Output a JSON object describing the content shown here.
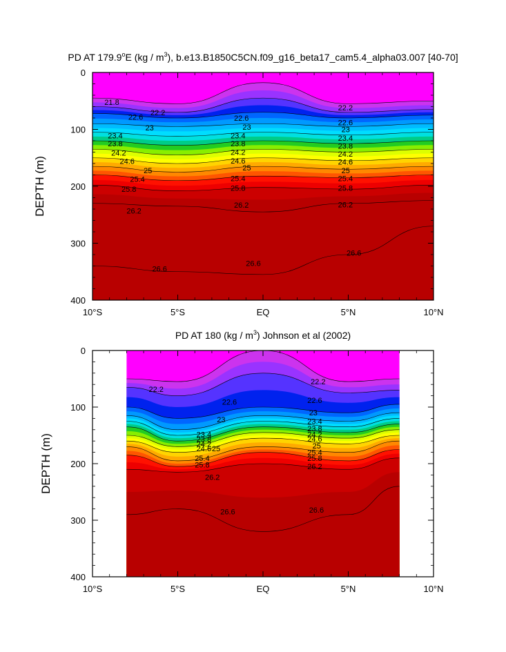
{
  "panels": [
    {
      "title_pre": "PD AT 179.9",
      "title_mid": "E (kg / m",
      "title_post": "), b.e13.B1850C5CN.f09_g16_beta17_cam5.4_alpha03.007 [40-70]",
      "ylabel": "DEPTH (m)",
      "data_xlim": [
        -10,
        10
      ]
    },
    {
      "title_pre": "PD AT 180 (kg / m",
      "title_mid": "",
      "title_post": ") Johnson et al (2002)",
      "ylabel": "DEPTH (m)",
      "data_xlim": [
        -8,
        8
      ]
    }
  ],
  "x_ticks": [
    "10°S",
    "5°S",
    "EQ",
    "5°N",
    "10°N"
  ],
  "y_ticks": [
    "0",
    "100",
    "200",
    "300",
    "400"
  ],
  "chart_data": [
    {
      "type": "heatmap",
      "title": "PD AT 179.9°E (kg / m³), b.e13.B1850C5CN.f09_g16_beta17_cam5.4_alpha03.007 [40-70]",
      "xlabel": "",
      "ylabel": "DEPTH (m)",
      "xlim": [
        -10,
        10
      ],
      "ylim": [
        400,
        0
      ],
      "x": [
        -10,
        -5,
        0,
        5,
        10
      ],
      "contour_levels": [
        21.8,
        22.2,
        22.6,
        23,
        23.4,
        23.8,
        24.2,
        24.6,
        25,
        25.4,
        25.8,
        26.2,
        26.6
      ],
      "contour_labels": [
        "21.8",
        "22.2",
        "22.6",
        "23",
        "23.4",
        "23.8",
        "24.2",
        "24.6",
        "25",
        "25.4",
        "25.8",
        "26.2",
        "26.6"
      ],
      "contour_depths": [
        {
          "level": 21.8,
          "depths": [
            45,
            55,
            18,
            55,
            50
          ]
        },
        {
          "level": 22.2,
          "depths": [
            60,
            70,
            45,
            70,
            65
          ]
        },
        {
          "level": 22.6,
          "depths": [
            72,
            80,
            70,
            80,
            75
          ]
        },
        {
          "level": 23,
          "depths": [
            90,
            95,
            90,
            95,
            90
          ]
        },
        {
          "level": 23.4,
          "depths": [
            105,
            112,
            105,
            110,
            105
          ]
        },
        {
          "level": 23.8,
          "depths": [
            120,
            128,
            120,
            125,
            120
          ]
        },
        {
          "level": 24.2,
          "depths": [
            135,
            145,
            135,
            140,
            135
          ]
        },
        {
          "level": 24.6,
          "depths": [
            150,
            160,
            150,
            155,
            150
          ]
        },
        {
          "level": 25,
          "depths": [
            165,
            175,
            165,
            170,
            165
          ]
        },
        {
          "level": 25.4,
          "depths": [
            180,
            190,
            182,
            185,
            180
          ]
        },
        {
          "level": 25.8,
          "depths": [
            198,
            208,
            202,
            205,
            198
          ]
        },
        {
          "level": 26.2,
          "depths": [
            230,
            235,
            245,
            230,
            225
          ]
        },
        {
          "level": 26.6,
          "depths": [
            340,
            350,
            355,
            320,
            270
          ]
        }
      ],
      "label_positions": [
        {
          "label": "21.8",
          "lat": -9.3,
          "depth": 52
        },
        {
          "label": "22.2",
          "lat": -6.6,
          "depth": 70
        },
        {
          "label": "22.6",
          "lat": -7.9,
          "depth": 78
        },
        {
          "label": "23",
          "lat": -6.9,
          "depth": 97
        },
        {
          "label": "23.4",
          "lat": -9.1,
          "depth": 111
        },
        {
          "label": "23.8",
          "lat": -9.1,
          "depth": 125
        },
        {
          "label": "24.2",
          "lat": -8.9,
          "depth": 141
        },
        {
          "label": "24.6",
          "lat": -8.4,
          "depth": 156
        },
        {
          "label": "25",
          "lat": -7.0,
          "depth": 172
        },
        {
          "label": "25.4",
          "lat": -7.8,
          "depth": 187
        },
        {
          "label": "25.8",
          "lat": -8.3,
          "depth": 205
        },
        {
          "label": "26.2",
          "lat": -8.0,
          "depth": 243
        },
        {
          "label": "26.6",
          "lat": -6.5,
          "depth": 345
        },
        {
          "label": "22.6",
          "lat": -1.7,
          "depth": 80
        },
        {
          "label": "23",
          "lat": -1.2,
          "depth": 96
        },
        {
          "label": "23.4",
          "lat": -1.9,
          "depth": 111
        },
        {
          "label": "23.8",
          "lat": -1.9,
          "depth": 125
        },
        {
          "label": "24.2",
          "lat": -1.9,
          "depth": 140
        },
        {
          "label": "24.6",
          "lat": -1.9,
          "depth": 155
        },
        {
          "label": "25",
          "lat": -1.2,
          "depth": 167
        },
        {
          "label": "25.4",
          "lat": -1.9,
          "depth": 186
        },
        {
          "label": "25.8",
          "lat": -1.9,
          "depth": 203
        },
        {
          "label": "26.2",
          "lat": -1.7,
          "depth": 233
        },
        {
          "label": "26.6",
          "lat": -1.0,
          "depth": 335
        },
        {
          "label": "22.2",
          "lat": 4.4,
          "depth": 62
        },
        {
          "label": "22.6",
          "lat": 4.4,
          "depth": 88
        },
        {
          "label": "23",
          "lat": 4.6,
          "depth": 100
        },
        {
          "label": "23.4",
          "lat": 4.4,
          "depth": 115
        },
        {
          "label": "23.8",
          "lat": 4.4,
          "depth": 129
        },
        {
          "label": "24.2",
          "lat": 4.4,
          "depth": 143
        },
        {
          "label": "24.6",
          "lat": 4.4,
          "depth": 157
        },
        {
          "label": "25",
          "lat": 4.6,
          "depth": 172
        },
        {
          "label": "25.4",
          "lat": 4.4,
          "depth": 186
        },
        {
          "label": "25.8",
          "lat": 4.4,
          "depth": 203
        },
        {
          "label": "26.2",
          "lat": 4.4,
          "depth": 232
        },
        {
          "label": "26.6",
          "lat": 4.9,
          "depth": 317
        }
      ]
    },
    {
      "type": "heatmap",
      "title": "PD AT 180 (kg / m³) Johnson et al (2002)",
      "xlabel": "",
      "ylabel": "DEPTH (m)",
      "xlim": [
        -10,
        10
      ],
      "ylim": [
        400,
        0
      ],
      "data_extent": [
        -8,
        8
      ],
      "x": [
        -8,
        -5,
        0,
        5,
        8
      ],
      "contour_levels": [
        22.2,
        22.6,
        23,
        23.4,
        23.8,
        24.2,
        24.6,
        25,
        25.4,
        25.8,
        26.2,
        26.6
      ],
      "contour_labels": [
        "22.2",
        "22.6",
        "23",
        "23.4",
        "23.8",
        "24.2",
        "24.6",
        "25",
        "25.4",
        "25.8",
        "26.2",
        "26.6"
      ],
      "contour_depths": [
        {
          "level": 22.2,
          "depths": [
            50,
            55,
            0,
            55,
            50
          ]
        },
        {
          "level": 22.6,
          "depths": [
            65,
            80,
            40,
            75,
            70
          ]
        },
        {
          "level": 23,
          "depths": [
            100,
            120,
            100,
            110,
            95
          ]
        },
        {
          "level": 23.4,
          "depths": [
            115,
            140,
            115,
            125,
            110
          ]
        },
        {
          "level": 23.8,
          "depths": [
            125,
            150,
            125,
            135,
            120
          ]
        },
        {
          "level": 24.2,
          "depths": [
            135,
            160,
            135,
            145,
            130
          ]
        },
        {
          "level": 24.6,
          "depths": [
            150,
            170,
            145,
            155,
            140
          ]
        },
        {
          "level": 25,
          "depths": [
            160,
            180,
            155,
            165,
            150
          ]
        },
        {
          "level": 25.4,
          "depths": [
            170,
            195,
            170,
            180,
            160
          ]
        },
        {
          "level": 25.8,
          "depths": [
            185,
            205,
            180,
            195,
            175
          ]
        },
        {
          "level": 26.2,
          "depths": [
            210,
            215,
            200,
            210,
            190
          ]
        },
        {
          "level": 26.6,
          "depths": [
            290,
            280,
            320,
            290,
            240
          ]
        }
      ],
      "label_positions": [
        {
          "label": "22.2",
          "lat": -6.7,
          "depth": 68
        },
        {
          "label": "22.6",
          "lat": -2.4,
          "depth": 91
        },
        {
          "label": "23",
          "lat": -2.7,
          "depth": 122
        },
        {
          "label": "23.4",
          "lat": -3.9,
          "depth": 148
        },
        {
          "label": "23.8",
          "lat": -3.9,
          "depth": 157
        },
        {
          "label": "24.2",
          "lat": -3.9,
          "depth": 165
        },
        {
          "label": "24.6",
          "lat": -3.9,
          "depth": 173
        },
        {
          "label": "25",
          "lat": -3.0,
          "depth": 173
        },
        {
          "label": "25.4",
          "lat": -4.0,
          "depth": 190
        },
        {
          "label": "25.8",
          "lat": -4.0,
          "depth": 202
        },
        {
          "label": "26.2",
          "lat": -3.4,
          "depth": 224
        },
        {
          "label": "26.6",
          "lat": -2.5,
          "depth": 285
        },
        {
          "label": "22.2",
          "lat": 2.8,
          "depth": 55
        },
        {
          "label": "22.6",
          "lat": 2.6,
          "depth": 88
        },
        {
          "label": "23",
          "lat": 2.7,
          "depth": 110
        },
        {
          "label": "23.4",
          "lat": 2.6,
          "depth": 125
        },
        {
          "label": "23.8",
          "lat": 2.6,
          "depth": 138
        },
        {
          "label": "24.2",
          "lat": 2.6,
          "depth": 148
        },
        {
          "label": "24.6",
          "lat": 2.6,
          "depth": 156
        },
        {
          "label": "25",
          "lat": 2.9,
          "depth": 168
        },
        {
          "label": "25.4",
          "lat": 2.6,
          "depth": 180
        },
        {
          "label": "25.8",
          "lat": 2.6,
          "depth": 190
        },
        {
          "label": "26.2",
          "lat": 2.6,
          "depth": 205
        },
        {
          "label": "26.6",
          "lat": 2.7,
          "depth": 282
        }
      ]
    }
  ],
  "colors": {
    "ramp": [
      "#ff00ff",
      "#cc33ee",
      "#9933ff",
      "#5533ff",
      "#0022ee",
      "#0066ff",
      "#0099ff",
      "#00bbff",
      "#00ddff",
      "#00e0e0",
      "#00cc88",
      "#22cc22",
      "#88ee00",
      "#ddff00",
      "#ffff00",
      "#ffd400",
      "#ffaa00",
      "#ff8800",
      "#ff5500",
      "#ff1100",
      "#ee0000",
      "#cc0000",
      "#b80000"
    ]
  }
}
